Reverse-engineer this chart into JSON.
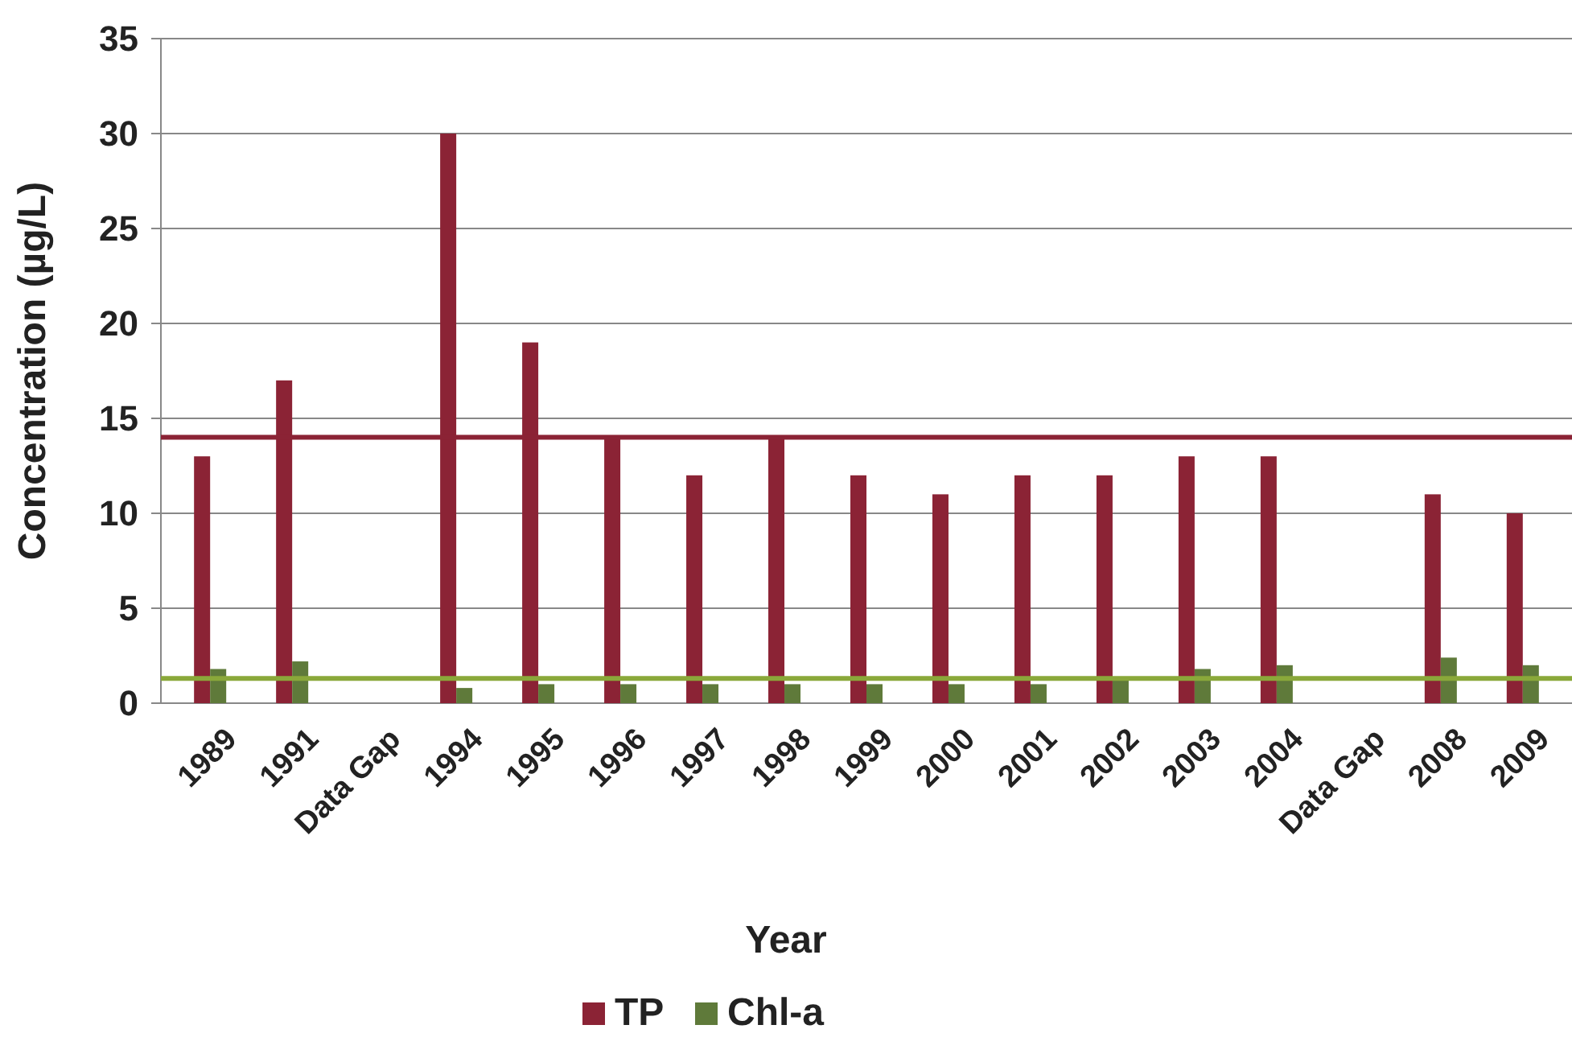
{
  "chart_data": {
    "type": "bar",
    "xlabel": "Year",
    "ylabel": "Concentration (µg/L)",
    "categories": [
      "1989",
      "1991",
      "Data Gap",
      "1994",
      "1995",
      "1996",
      "1997",
      "1998",
      "1999",
      "2000",
      "2001",
      "2002",
      "2003",
      "2004",
      "Data Gap",
      "2008",
      "2009"
    ],
    "series": [
      {
        "name": "TP",
        "color": "#8b2335",
        "values": [
          13,
          17,
          null,
          30,
          19,
          14,
          12,
          14,
          12,
          11,
          12,
          12,
          13,
          13,
          null,
          11,
          10
        ]
      },
      {
        "name": "Chl-a",
        "color": "#5f7a3a",
        "values": [
          1.8,
          2.2,
          null,
          0.8,
          1,
          1,
          1,
          1,
          1,
          1,
          1,
          1.2,
          1.8,
          2,
          null,
          2.4,
          2
        ]
      }
    ],
    "ylim": [
      0,
      35
    ],
    "yticks": [
      0,
      5,
      10,
      15,
      20,
      25,
      30,
      35
    ],
    "grid": "y",
    "legend": "bottom",
    "ref_lines": [
      {
        "axis": "y",
        "value": 14,
        "color": "#8b2335"
      },
      {
        "axis": "y",
        "value": 1.3,
        "color": "#8aa83a"
      }
    ]
  }
}
